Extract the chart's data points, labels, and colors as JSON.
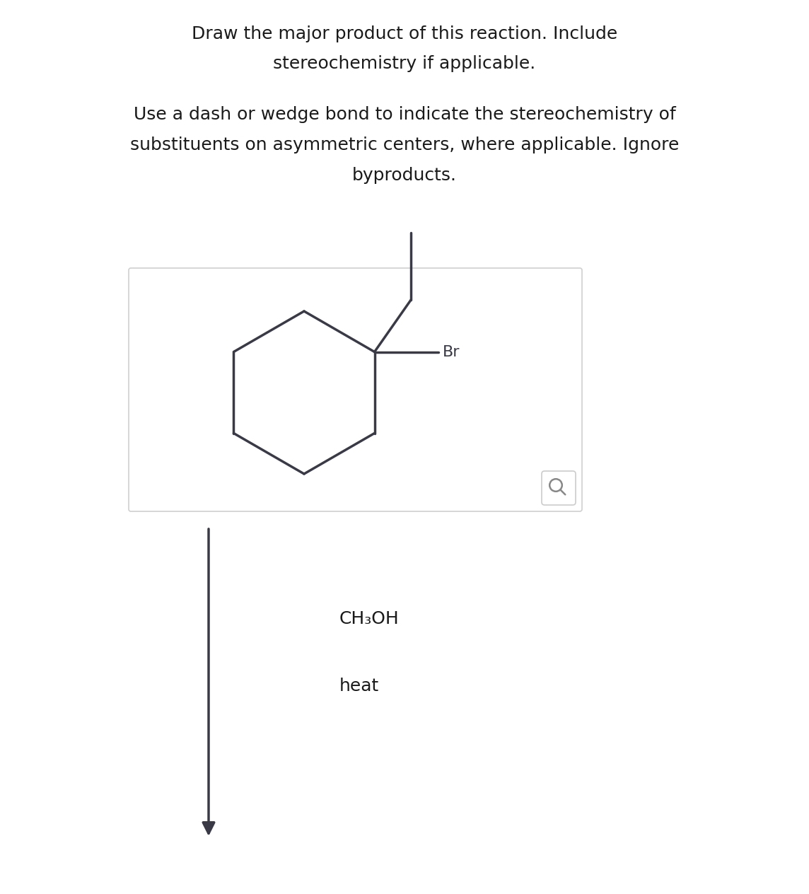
{
  "title_line1": "Draw the major product of this reaction. Include",
  "title_line2": "stereochemistry if applicable.",
  "subtitle_line1": "Use a dash or wedge bond to indicate the stereochemistry of",
  "subtitle_line2": "substituents on asymmetric centers, where applicable. Ignore",
  "subtitle_line3": "byproducts.",
  "reagent1": "CH₃OH",
  "reagent2": "heat",
  "molecule_color": "#3a3a47",
  "text_color": "#1a1a1a",
  "background_color": "#ffffff",
  "box_color": "#d0d0d0",
  "arrow_color": "#3a3a47"
}
